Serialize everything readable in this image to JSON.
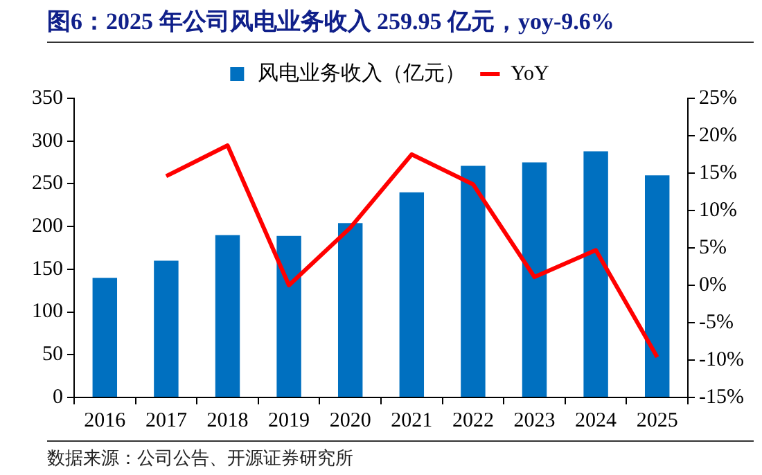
{
  "chart_data": {
    "type": "bar",
    "title": "图6：2025 年公司风电业务收入 259.95 亿元，yoy-9.6%",
    "categories": [
      "2016",
      "2017",
      "2018",
      "2019",
      "2020",
      "2021",
      "2022",
      "2023",
      "2024",
      "2025"
    ],
    "series": [
      {
        "name": "风电业务收入（亿元）",
        "color": "#0070c0",
        "values": [
          140,
          160,
          190,
          189,
          204,
          240,
          271,
          275,
          288,
          259.95
        ]
      },
      {
        "name": "YoY",
        "type": "line",
        "axis": "y2",
        "color": "#ff0000",
        "values": [
          null,
          14.6,
          18.7,
          0,
          7.7,
          17.5,
          13.5,
          1.1,
          4.7,
          -9.6
        ]
      }
    ],
    "ylim": [
      0,
      350
    ],
    "yticks": [
      0,
      50,
      100,
      150,
      200,
      250,
      300,
      350
    ],
    "y2lim": [
      -15,
      25
    ],
    "y2ticks": [
      {
        "value": -15,
        "label": "-15%"
      },
      {
        "value": -10,
        "label": "-10%"
      },
      {
        "value": -5,
        "label": "-5%"
      },
      {
        "value": 0,
        "label": "0%"
      },
      {
        "value": 5,
        "label": "5%"
      },
      {
        "value": 10,
        "label": "10%"
      },
      {
        "value": 15,
        "label": "15%"
      },
      {
        "value": 20,
        "label": "20%"
      },
      {
        "value": 25,
        "label": "25%"
      }
    ],
    "legend": "top",
    "grid": false,
    "marker": "none",
    "annotations": [
      "数据来源：公司公告、开源证券研究所"
    ]
  }
}
